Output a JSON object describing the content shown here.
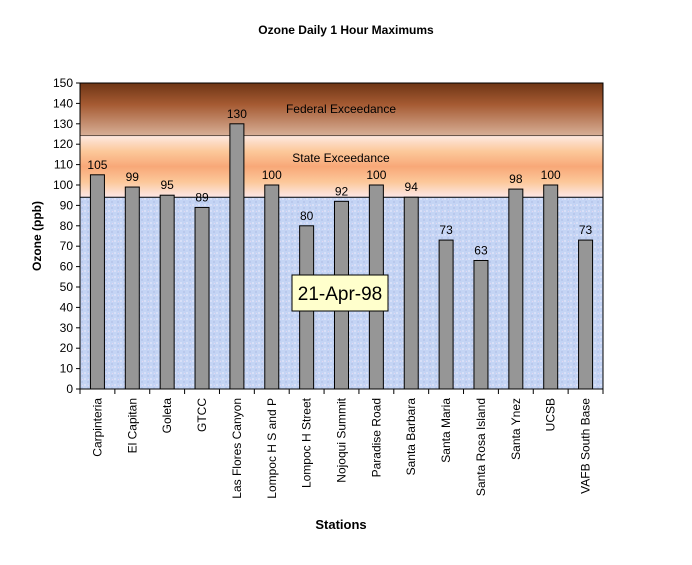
{
  "chart_data": {
    "type": "bar",
    "title": "Ozone Daily 1 Hour Maximums",
    "xlabel": "Stations",
    "ylabel": "Ozone (ppb)",
    "ylim": [
      0,
      150
    ],
    "yticks": [
      0,
      10,
      20,
      30,
      40,
      50,
      60,
      70,
      80,
      90,
      100,
      110,
      120,
      130,
      140,
      150
    ],
    "categories": [
      "Carpinteria",
      "El Capitan",
      "Goleta",
      "GTCC",
      "Las Flores Canyon",
      "Lompoc H S and P",
      "Lompoc H Street",
      "Nojoqui Summit",
      "Paradise Road",
      "Santa Barbara",
      "Santa Maria",
      "Santa Rosa Island",
      "Santa Ynez",
      "UCSB",
      "VAFB South Base"
    ],
    "values": [
      105,
      99,
      95,
      89,
      130,
      100,
      80,
      92,
      100,
      94,
      73,
      63,
      98,
      100,
      73
    ],
    "bands": [
      {
        "label": "Federal Exceedance",
        "from": 124,
        "to": 150,
        "color": "#a0522d"
      },
      {
        "label": "State Exceedance",
        "from": 94,
        "to": 124,
        "color": "#f8b890"
      }
    ],
    "annotation": "21-Apr-98",
    "bar_color": "#969696",
    "grid": false,
    "legend": "none"
  }
}
